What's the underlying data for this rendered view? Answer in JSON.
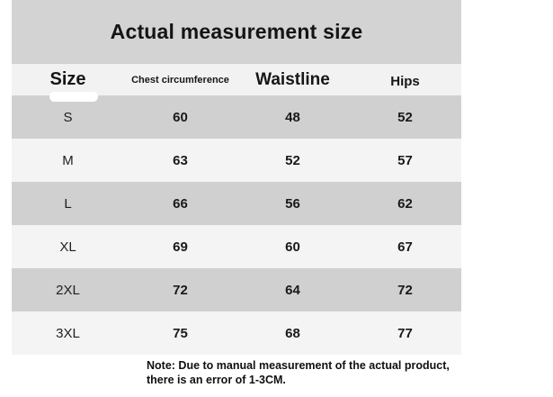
{
  "title": "Actual measurement size",
  "table": {
    "columns": {
      "size": "Size",
      "chest": "Chest circumference",
      "waist": "Waistline",
      "hips": "Hips"
    },
    "rows": [
      {
        "size": "S",
        "chest": "60",
        "waist": "48",
        "hips": "52"
      },
      {
        "size": "M",
        "chest": "63",
        "waist": "52",
        "hips": "57"
      },
      {
        "size": "L",
        "chest": "66",
        "waist": "56",
        "hips": "62"
      },
      {
        "size": "XL",
        "chest": "69",
        "waist": "60",
        "hips": "67"
      },
      {
        "size": "2XL",
        "chest": "72",
        "waist": "64",
        "hips": "72"
      },
      {
        "size": "3XL",
        "chest": "75",
        "waist": "68",
        "hips": "77"
      }
    ]
  },
  "note": {
    "line1": "Note: Due to manual measurement of the actual product,",
    "line2": "there is an error of 1-3CM."
  },
  "colors": {
    "banner": "#d3d3d3",
    "header": "#f2f2f2",
    "rowGray": "#d0d0d0",
    "rowLight": "#f4f4f4"
  },
  "chart_data": {
    "type": "table",
    "title": "Actual measurement size",
    "columns": [
      "Size",
      "Chest circumference",
      "Waistline",
      "Hips"
    ],
    "rows": [
      [
        "S",
        60,
        48,
        52
      ],
      [
        "M",
        63,
        52,
        57
      ],
      [
        "L",
        66,
        56,
        62
      ],
      [
        "XL",
        69,
        60,
        67
      ],
      [
        "2XL",
        72,
        64,
        72
      ],
      [
        "3XL",
        75,
        68,
        77
      ]
    ],
    "units": "CM",
    "note": "Note: Due to manual measurement of the actual product, there is an error of 1-3CM."
  }
}
